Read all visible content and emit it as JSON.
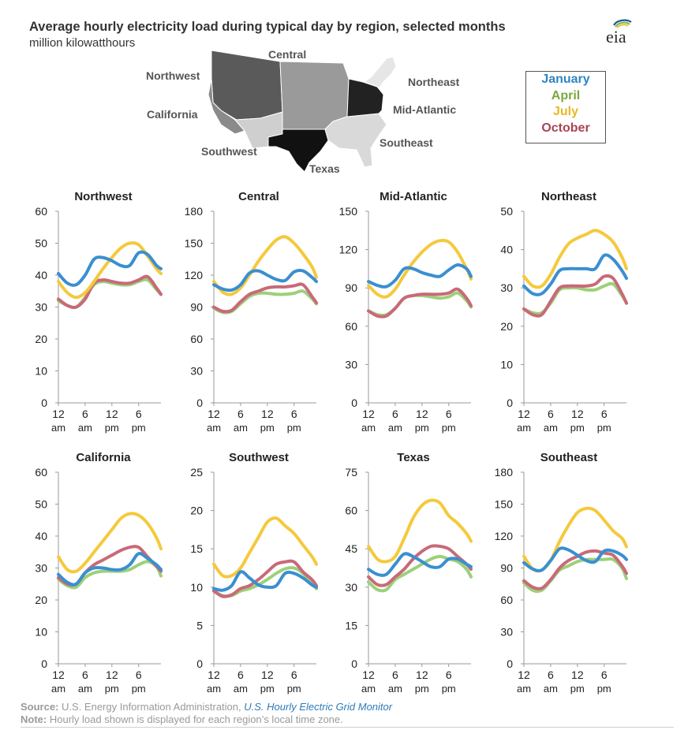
{
  "title": "Average hourly electricity load during typical day by region, selected months",
  "subtitle": "million kilowatthours",
  "logo_text": "eia",
  "map_labels": {
    "northwest": "Northwest",
    "central": "Central",
    "northeast": "Northeast",
    "california": "California",
    "mid_atlantic": "Mid-Atlantic",
    "southwest": "Southwest",
    "southeast": "Southeast",
    "texas": "Texas"
  },
  "legend": [
    {
      "name": "January",
      "color": "#2e86c1"
    },
    {
      "name": "April",
      "color": "#7aa83e"
    },
    {
      "name": "July",
      "color": "#e8b824"
    },
    {
      "name": "October",
      "color": "#a84454"
    }
  ],
  "line_colors": {
    "January": "#3a8fd0",
    "April": "#9dd07a",
    "July": "#f5c93c",
    "October": "#c86a78"
  },
  "footer": {
    "source_label": "Source:",
    "source_text": "U.S. Energy Information Administration,",
    "source_link": "U.S. Hourly Electric Grid Monitor",
    "note_label": "Note:",
    "note_text": "Hourly load shown is displayed for each region’s local time zone."
  },
  "chart_data": [
    {
      "type": "line",
      "title": "Northwest",
      "x": [
        0,
        2,
        4,
        6,
        8,
        10,
        12,
        14,
        16,
        18,
        20,
        22,
        23
      ],
      "x_tick_values": [
        0,
        6,
        12,
        18
      ],
      "x_tick_labels": [
        [
          "12",
          "am"
        ],
        [
          "6",
          "am"
        ],
        [
          "12",
          "pm"
        ],
        [
          "6",
          "pm"
        ]
      ],
      "ylim": [
        0,
        60
      ],
      "yticks": [
        0,
        10,
        20,
        30,
        40,
        50,
        60
      ],
      "series": [
        {
          "name": "January",
          "values": [
            40.5,
            37.5,
            37.0,
            40.0,
            45.0,
            45.5,
            44.5,
            43.0,
            43.0,
            47.0,
            46.5,
            43.0,
            42.0
          ]
        },
        {
          "name": "April",
          "values": [
            32.0,
            30.5,
            30.0,
            33.0,
            37.0,
            38.0,
            37.5,
            37.0,
            37.0,
            38.0,
            38.5,
            35.5,
            34.0
          ]
        },
        {
          "name": "July",
          "values": [
            38.0,
            34.5,
            33.0,
            34.5,
            38.0,
            42.0,
            45.5,
            48.5,
            50.0,
            49.5,
            46.0,
            42.0,
            40.5
          ]
        },
        {
          "name": "October",
          "values": [
            32.5,
            30.5,
            30.0,
            32.5,
            37.5,
            38.5,
            38.0,
            37.5,
            37.5,
            38.5,
            39.5,
            36.0,
            34.0
          ]
        }
      ]
    },
    {
      "type": "line",
      "title": "Central",
      "x": [
        0,
        2,
        4,
        6,
        8,
        10,
        12,
        14,
        16,
        18,
        20,
        22,
        23
      ],
      "x_tick_values": [
        0,
        6,
        12,
        18
      ],
      "x_tick_labels": [
        [
          "12",
          "am"
        ],
        [
          "6",
          "am"
        ],
        [
          "12",
          "pm"
        ],
        [
          "6",
          "pm"
        ]
      ],
      "ylim": [
        0,
        180
      ],
      "yticks": [
        0,
        30,
        60,
        90,
        120,
        150,
        180
      ],
      "series": [
        {
          "name": "January",
          "values": [
            111,
            107,
            106,
            111,
            122,
            124,
            120,
            116,
            115,
            123,
            124,
            118,
            114
          ]
        },
        {
          "name": "April",
          "values": [
            89,
            85,
            86,
            93,
            100,
            103,
            103,
            102,
            102,
            103,
            105,
            98,
            93
          ]
        },
        {
          "name": "July",
          "values": [
            114,
            104,
            102,
            108,
            120,
            133,
            144,
            153,
            156,
            150,
            140,
            128,
            118
          ]
        },
        {
          "name": "October",
          "values": [
            90,
            86,
            87,
            95,
            102,
            105,
            108,
            109,
            109,
            110,
            111,
            100,
            94
          ]
        }
      ]
    },
    {
      "type": "line",
      "title": "Mid-Atlantic",
      "x": [
        0,
        2,
        4,
        6,
        8,
        10,
        12,
        14,
        16,
        18,
        20,
        22,
        23
      ],
      "x_tick_values": [
        0,
        6,
        12,
        18
      ],
      "x_tick_labels": [
        [
          "12",
          "am"
        ],
        [
          "6",
          "am"
        ],
        [
          "12",
          "pm"
        ],
        [
          "6",
          "pm"
        ]
      ],
      "ylim": [
        0,
        150
      ],
      "yticks": [
        0,
        30,
        60,
        90,
        120,
        150
      ],
      "series": [
        {
          "name": "January",
          "values": [
            95,
            92,
            91,
            96,
            105,
            105,
            102,
            100,
            99,
            104,
            108,
            105,
            99
          ]
        },
        {
          "name": "April",
          "values": [
            72,
            69,
            69,
            74,
            82,
            84,
            84,
            83,
            82,
            83,
            86,
            80,
            75
          ]
        },
        {
          "name": "July",
          "values": [
            92,
            85,
            83,
            89,
            100,
            110,
            118,
            124,
            127,
            126,
            118,
            105,
            97
          ]
        },
        {
          "name": "October",
          "values": [
            72,
            68,
            68,
            74,
            82,
            84,
            85,
            85,
            85,
            86,
            89,
            82,
            76
          ]
        }
      ]
    },
    {
      "type": "line",
      "title": "Northeast",
      "x": [
        0,
        2,
        4,
        6,
        8,
        10,
        12,
        14,
        16,
        18,
        20,
        22,
        23
      ],
      "x_tick_values": [
        0,
        6,
        12,
        18
      ],
      "x_tick_labels": [
        [
          "12",
          "am"
        ],
        [
          "6",
          "am"
        ],
        [
          "12",
          "pm"
        ],
        [
          "6",
          "pm"
        ]
      ],
      "ylim": [
        0,
        50
      ],
      "yticks": [
        0,
        10,
        20,
        30,
        40,
        50
      ],
      "series": [
        {
          "name": "January",
          "values": [
            30.5,
            28.5,
            28.5,
            31.0,
            34.5,
            35.0,
            35.0,
            35.0,
            35.0,
            38.5,
            37.5,
            34.5,
            32.5
          ]
        },
        {
          "name": "April",
          "values": [
            24.5,
            23.5,
            23.5,
            26.0,
            29.5,
            30.0,
            30.0,
            29.5,
            29.5,
            30.5,
            31.0,
            28.0,
            26.0
          ]
        },
        {
          "name": "July",
          "values": [
            33.0,
            30.5,
            30.5,
            33.5,
            38.0,
            41.5,
            43.0,
            44.0,
            45.0,
            44.0,
            42.0,
            38.0,
            35.0
          ]
        },
        {
          "name": "October",
          "values": [
            24.5,
            23.0,
            23.0,
            26.5,
            30.0,
            30.5,
            30.5,
            30.5,
            31.0,
            33.0,
            32.5,
            28.5,
            26.0
          ]
        }
      ]
    },
    {
      "type": "line",
      "title": "California",
      "x": [
        0,
        2,
        4,
        6,
        8,
        10,
        12,
        14,
        16,
        18,
        20,
        22,
        23
      ],
      "x_tick_values": [
        0,
        6,
        12,
        18
      ],
      "x_tick_labels": [
        [
          "12",
          "am"
        ],
        [
          "6",
          "am"
        ],
        [
          "12",
          "pm"
        ],
        [
          "6",
          "pm"
        ]
      ],
      "ylim": [
        0,
        60
      ],
      "yticks": [
        0,
        10,
        20,
        30,
        40,
        50,
        60
      ],
      "series": [
        {
          "name": "January",
          "values": [
            28,
            25.5,
            25,
            28.5,
            30,
            30,
            29.5,
            29.5,
            31,
            34.5,
            33,
            31,
            29.5
          ]
        },
        {
          "name": "April",
          "values": [
            26.5,
            24.5,
            24,
            27,
            28.5,
            29,
            29,
            29,
            29.5,
            31,
            32,
            30.5,
            27.5
          ]
        },
        {
          "name": "July",
          "values": [
            33.5,
            29.5,
            29,
            31.5,
            35,
            38.5,
            42,
            45.5,
            47,
            46.5,
            44,
            39.5,
            36
          ]
        },
        {
          "name": "October",
          "values": [
            27,
            25,
            25,
            28.5,
            31,
            32.5,
            34,
            35.5,
            36.5,
            36.5,
            33.5,
            30.5,
            29
          ]
        }
      ]
    },
    {
      "type": "line",
      "title": "Southwest",
      "x": [
        0,
        2,
        4,
        6,
        8,
        10,
        12,
        14,
        16,
        18,
        20,
        22,
        23
      ],
      "x_tick_values": [
        0,
        6,
        12,
        18
      ],
      "x_tick_labels": [
        [
          "12",
          "am"
        ],
        [
          "6",
          "am"
        ],
        [
          "12",
          "pm"
        ],
        [
          "6",
          "pm"
        ]
      ],
      "ylim": [
        0,
        25
      ],
      "yticks": [
        0,
        5,
        10,
        15,
        20,
        25
      ],
      "series": [
        {
          "name": "January",
          "values": [
            9.8,
            9.6,
            10.2,
            12.0,
            11.2,
            10.3,
            10.0,
            10.2,
            11.8,
            11.8,
            11.2,
            10.3,
            10.0
          ]
        },
        {
          "name": "April",
          "values": [
            9.5,
            8.9,
            8.9,
            9.5,
            9.8,
            10.3,
            11.0,
            11.8,
            12.4,
            12.5,
            11.8,
            10.5,
            9.8
          ]
        },
        {
          "name": "July",
          "values": [
            13,
            11.5,
            11.5,
            12.5,
            14.5,
            16.5,
            18.5,
            19.0,
            18.0,
            17.0,
            15.5,
            14.0,
            13.0
          ]
        },
        {
          "name": "October",
          "values": [
            9.5,
            8.8,
            9.0,
            9.8,
            10.2,
            11.0,
            12.0,
            13.0,
            13.3,
            13.3,
            12.0,
            11.0,
            10.2
          ]
        }
      ]
    },
    {
      "type": "line",
      "title": "Texas",
      "x": [
        0,
        2,
        4,
        6,
        8,
        10,
        12,
        14,
        16,
        18,
        20,
        22,
        23
      ],
      "x_tick_values": [
        0,
        6,
        12,
        18
      ],
      "x_tick_labels": [
        [
          "12",
          "am"
        ],
        [
          "6",
          "am"
        ],
        [
          "12",
          "pm"
        ],
        [
          "6",
          "pm"
        ]
      ],
      "ylim": [
        0,
        75
      ],
      "yticks": [
        0,
        15,
        30,
        45,
        60,
        75
      ],
      "series": [
        {
          "name": "January",
          "values": [
            37,
            35,
            35,
            39,
            43,
            42,
            40,
            38,
            38,
            41,
            41,
            39,
            38
          ]
        },
        {
          "name": "April",
          "values": [
            32,
            29,
            29,
            33,
            35,
            37,
            39,
            41,
            42,
            41,
            40,
            37,
            34
          ]
        },
        {
          "name": "July",
          "values": [
            46,
            41,
            40,
            42,
            49,
            57,
            62,
            64,
            63,
            58,
            55,
            51,
            48
          ]
        },
        {
          "name": "October",
          "values": [
            34,
            31,
            31,
            34,
            37,
            41,
            44,
            46,
            46,
            45,
            42,
            39,
            37
          ]
        }
      ]
    },
    {
      "type": "line",
      "title": "Southeast",
      "x": [
        0,
        2,
        4,
        6,
        8,
        10,
        12,
        14,
        16,
        18,
        20,
        22,
        23
      ],
      "x_tick_values": [
        0,
        6,
        12,
        18
      ],
      "x_tick_labels": [
        [
          "12",
          "am"
        ],
        [
          "6",
          "am"
        ],
        [
          "12",
          "pm"
        ],
        [
          "6",
          "pm"
        ]
      ],
      "ylim": [
        0,
        180
      ],
      "yticks": [
        0,
        30,
        60,
        90,
        120,
        150,
        180
      ],
      "series": [
        {
          "name": "January",
          "values": [
            95,
            89,
            88,
            97,
            108,
            107,
            102,
            97,
            96,
            106,
            106,
            102,
            98
          ]
        },
        {
          "name": "April",
          "values": [
            76,
            69,
            69,
            78,
            88,
            92,
            96,
            98,
            98,
            98,
            98,
            90,
            80
          ]
        },
        {
          "name": "July",
          "values": [
            101,
            89,
            88,
            97,
            115,
            130,
            142,
            146,
            144,
            135,
            125,
            118,
            110
          ]
        },
        {
          "name": "October",
          "values": [
            78,
            72,
            71,
            79,
            90,
            97,
            101,
            105,
            106,
            104,
            102,
            92,
            85
          ]
        }
      ]
    }
  ]
}
